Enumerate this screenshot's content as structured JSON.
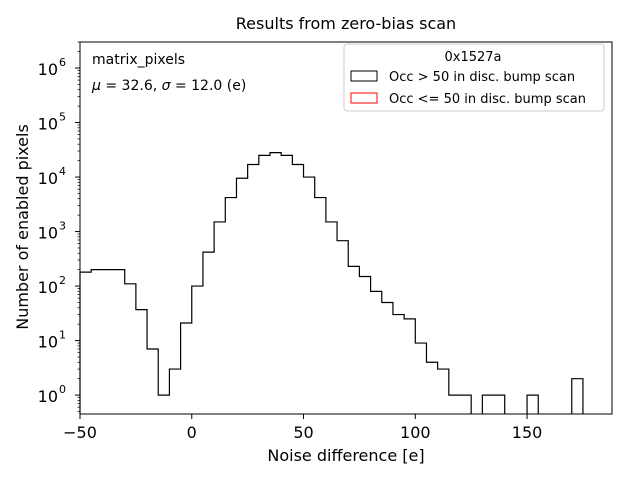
{
  "chart_data": {
    "type": "histogram",
    "title": "Results from zero-bias scan",
    "xlabel": "Noise difference [e]",
    "ylabel": "Number of enabled pixels",
    "xlim": [
      -50,
      188
    ],
    "ylim": [
      0.45,
      3000000
    ],
    "yscale": "log",
    "grid": false,
    "bin_width": 5,
    "x_ticks": [
      -50,
      0,
      50,
      100,
      150
    ],
    "y_ticks": [
      {
        "value": 1,
        "base": "10",
        "exp": "0"
      },
      {
        "value": 10,
        "base": "10",
        "exp": "1"
      },
      {
        "value": 100,
        "base": "10",
        "exp": "2"
      },
      {
        "value": 1000,
        "base": "10",
        "exp": "3"
      },
      {
        "value": 10000,
        "base": "10",
        "exp": "4"
      },
      {
        "value": 100000,
        "base": "10",
        "exp": "5"
      },
      {
        "value": 1000000,
        "base": "10",
        "exp": "6"
      }
    ],
    "annotations": {
      "line1": "matrix_pixels",
      "line2_parts": [
        "μ",
        " = 32.6, ",
        "σ",
        " = 12.0 (e)"
      ]
    },
    "legend": {
      "placement": "top-right",
      "title": "0x1527a",
      "entries": [
        {
          "label": "Occ > 50 in disc. bump scan",
          "color": "#000000"
        },
        {
          "label": "Occ <= 50 in disc. bump scan",
          "color": "#ff0000"
        }
      ]
    },
    "series": [
      {
        "name": "Occ > 50 in disc. bump scan",
        "color": "#000000",
        "bins": [
          {
            "x": -50,
            "count": 180
          },
          {
            "x": -45,
            "count": 200
          },
          {
            "x": -40,
            "count": 200
          },
          {
            "x": -35,
            "count": 200
          },
          {
            "x": -30,
            "count": 110
          },
          {
            "x": -25,
            "count": 37
          },
          {
            "x": -20,
            "count": 7
          },
          {
            "x": -15,
            "count": 1
          },
          {
            "x": -10,
            "count": 3
          },
          {
            "x": -5,
            "count": 21
          },
          {
            "x": 0,
            "count": 100
          },
          {
            "x": 5,
            "count": 420
          },
          {
            "x": 10,
            "count": 1500
          },
          {
            "x": 15,
            "count": 4200
          },
          {
            "x": 20,
            "count": 9500
          },
          {
            "x": 25,
            "count": 17000
          },
          {
            "x": 30,
            "count": 25000
          },
          {
            "x": 35,
            "count": 28000
          },
          {
            "x": 40,
            "count": 25000
          },
          {
            "x": 45,
            "count": 17000
          },
          {
            "x": 50,
            "count": 10000
          },
          {
            "x": 55,
            "count": 4200
          },
          {
            "x": 60,
            "count": 1500
          },
          {
            "x": 65,
            "count": 680
          },
          {
            "x": 70,
            "count": 230
          },
          {
            "x": 75,
            "count": 150
          },
          {
            "x": 80,
            "count": 80
          },
          {
            "x": 85,
            "count": 50
          },
          {
            "x": 90,
            "count": 30
          },
          {
            "x": 95,
            "count": 25
          },
          {
            "x": 100,
            "count": 9
          },
          {
            "x": 105,
            "count": 4
          },
          {
            "x": 110,
            "count": 3
          },
          {
            "x": 115,
            "count": 1
          },
          {
            "x": 120,
            "count": 1
          },
          {
            "x": 125,
            "count": 0
          },
          {
            "x": 130,
            "count": 1
          },
          {
            "x": 135,
            "count": 1
          },
          {
            "x": 140,
            "count": 0
          },
          {
            "x": 145,
            "count": 0
          },
          {
            "x": 150,
            "count": 1
          },
          {
            "x": 155,
            "count": 0
          },
          {
            "x": 160,
            "count": 0
          },
          {
            "x": 165,
            "count": 0
          },
          {
            "x": 170,
            "count": 2
          }
        ]
      },
      {
        "name": "Occ <= 50 in disc. bump scan",
        "color": "#ff0000",
        "bins": []
      }
    ]
  }
}
